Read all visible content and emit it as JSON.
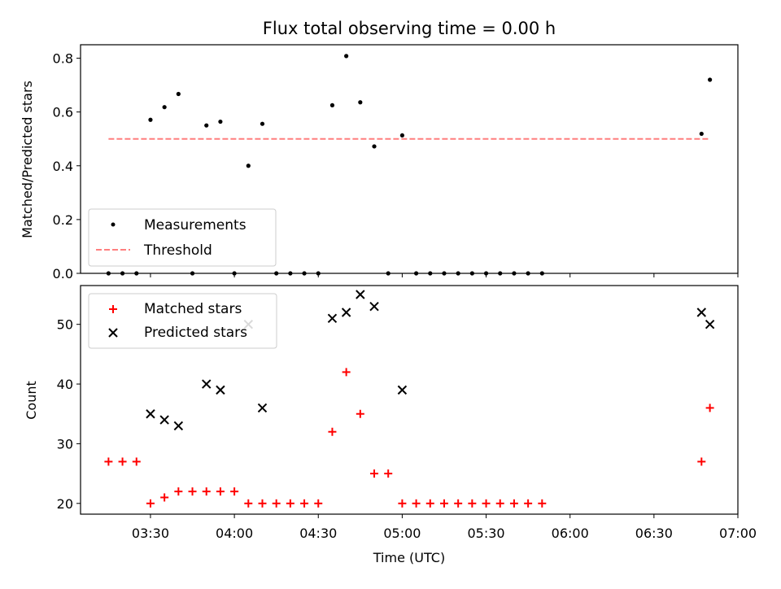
{
  "chart_data": [
    {
      "type": "scatter",
      "title": "Flux total observing time = 0.00 h",
      "xlabel": "",
      "ylabel": "Matched/Predicted stars",
      "xlim": [
        "03:05",
        "07:00"
      ],
      "ylim": [
        0,
        0.85
      ],
      "yticks": [
        "0.0",
        "0.2",
        "0.4",
        "0.6",
        "0.8"
      ],
      "legend_placement": "lower-left",
      "series": [
        {
          "name": "Measurements",
          "marker": "dot",
          "color": "#000000",
          "x": [
            "03:15",
            "03:20",
            "03:25",
            "03:30",
            "03:35",
            "03:40",
            "03:45",
            "03:50",
            "03:55",
            "04:00",
            "04:05",
            "04:10",
            "04:15",
            "04:20",
            "04:25",
            "04:30",
            "04:35",
            "04:40",
            "04:45",
            "04:50",
            "04:55",
            "05:00",
            "05:05",
            "05:10",
            "05:15",
            "05:20",
            "05:25",
            "05:30",
            "05:35",
            "05:40",
            "05:45",
            "05:50",
            "06:47",
            "06:50"
          ],
          "y": [
            0,
            0,
            0,
            0.571,
            0.618,
            0.667,
            0,
            0.55,
            0.564,
            0,
            0.4,
            0.556,
            0,
            0,
            0,
            0,
            0.625,
            0.808,
            0.636,
            0.472,
            0,
            0.513,
            0,
            0,
            0,
            0,
            0,
            0,
            0,
            0,
            0,
            0,
            0.519,
            0.72
          ]
        },
        {
          "name": "Threshold",
          "style": "dashed",
          "color": "#ff7f7f",
          "x": [
            "03:15",
            "06:50"
          ],
          "y": [
            0.5,
            0.5
          ]
        }
      ]
    },
    {
      "type": "scatter",
      "title": "",
      "xlabel": "Time (UTC)",
      "ylabel": "Count",
      "xlim": [
        "03:05",
        "07:00"
      ],
      "ylim": [
        18.2,
        56.5
      ],
      "yticks": [
        "20",
        "30",
        "40",
        "50"
      ],
      "xticks": [
        "03:30",
        "04:00",
        "04:30",
        "05:00",
        "05:30",
        "06:00",
        "06:30",
        "07:00"
      ],
      "legend_placement": "upper-left",
      "series": [
        {
          "name": "Matched stars",
          "marker": "plus",
          "color": "#ff0000",
          "x": [
            "03:15",
            "03:20",
            "03:25",
            "03:30",
            "03:35",
            "03:40",
            "03:45",
            "03:50",
            "03:55",
            "04:00",
            "04:05",
            "04:10",
            "04:15",
            "04:20",
            "04:25",
            "04:30",
            "04:35",
            "04:40",
            "04:45",
            "04:50",
            "04:55",
            "05:00",
            "05:05",
            "05:10",
            "05:15",
            "05:20",
            "05:25",
            "05:30",
            "05:35",
            "05:40",
            "05:45",
            "05:50",
            "06:47",
            "06:50"
          ],
          "y": [
            27,
            27,
            27,
            20,
            21,
            22,
            22,
            22,
            22,
            22,
            20,
            20,
            20,
            20,
            20,
            20,
            32,
            42,
            35,
            25,
            25,
            20,
            20,
            20,
            20,
            20,
            20,
            20,
            20,
            20,
            20,
            20,
            27,
            36
          ]
        },
        {
          "name": "Predicted stars",
          "marker": "x",
          "color": "#000000",
          "x": [
            "03:30",
            "03:35",
            "03:40",
            "03:50",
            "03:55",
            "04:05",
            "04:10",
            "04:35",
            "04:40",
            "04:45",
            "04:50",
            "05:00",
            "06:47",
            "06:50"
          ],
          "y": [
            35,
            34,
            33,
            40,
            39,
            50,
            36,
            51,
            52,
            55,
            53,
            39,
            52,
            50
          ]
        }
      ]
    }
  ]
}
